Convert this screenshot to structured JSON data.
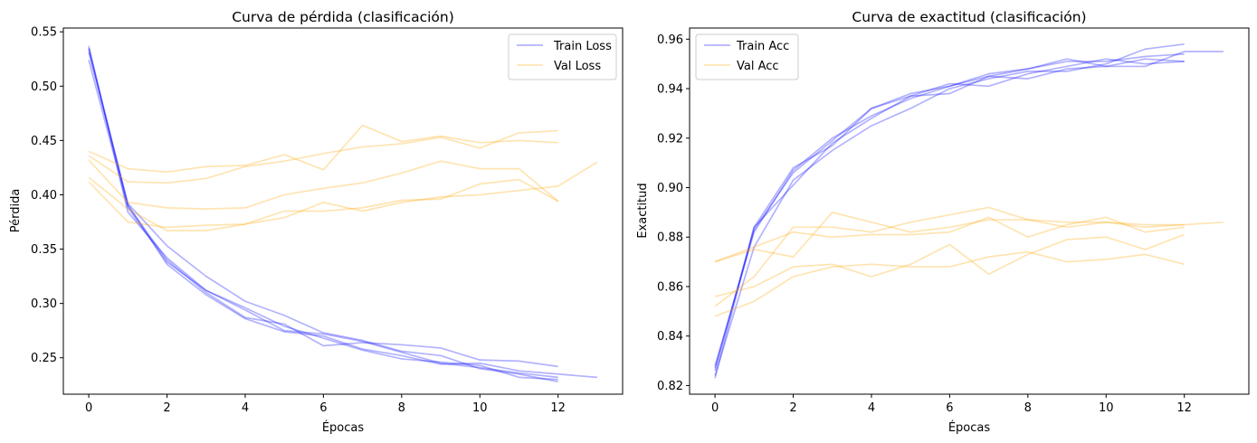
{
  "colors": {
    "train": "#0000ff",
    "val": "#ffa500",
    "line_alpha": 0.3
  },
  "chart_data": [
    {
      "type": "line",
      "title": "Curva de pérdida (clasificación)",
      "xlabel": "Épocas",
      "ylabel": "Pérdida",
      "xlim": [
        -0.65,
        13.65
      ],
      "ylim": [
        0.2165,
        0.5535
      ],
      "xticks": [
        0,
        2,
        4,
        6,
        8,
        10,
        12
      ],
      "yticks": [
        0.25,
        0.3,
        0.35,
        0.4,
        0.45,
        0.5,
        0.55
      ],
      "ytick_labels": [
        "0.25",
        "0.30",
        "0.35",
        "0.40",
        "0.45",
        "0.50",
        "0.55"
      ],
      "grid": false,
      "legend_position": "top-right",
      "legend": [
        {
          "label": "Train Loss",
          "group": "train"
        },
        {
          "label": "Val Loss",
          "group": "val"
        }
      ],
      "series": [
        {
          "group": "train",
          "x": [
            0,
            1,
            2,
            3,
            4,
            5,
            6,
            7,
            8,
            9,
            10,
            11,
            12
          ],
          "y": [
            0.537,
            0.384,
            0.342,
            0.312,
            0.294,
            0.275,
            0.272,
            0.265,
            0.255,
            0.245,
            0.241,
            0.236,
            0.232
          ]
        },
        {
          "group": "train",
          "x": [
            0,
            1,
            2,
            3,
            4,
            5,
            6,
            7,
            8,
            9,
            10,
            11,
            12
          ],
          "y": [
            0.535,
            0.39,
            0.34,
            0.31,
            0.287,
            0.281,
            0.261,
            0.264,
            0.262,
            0.259,
            0.248,
            0.247,
            0.242
          ]
        },
        {
          "group": "train",
          "x": [
            0,
            1,
            2,
            3,
            4,
            5,
            6,
            7,
            8,
            9,
            10,
            11,
            12
          ],
          "y": [
            0.531,
            0.392,
            0.353,
            0.325,
            0.302,
            0.289,
            0.273,
            0.266,
            0.256,
            0.252,
            0.24,
            0.235,
            0.228
          ]
        },
        {
          "group": "train",
          "x": [
            0,
            1,
            2,
            3,
            4,
            5,
            6,
            7,
            8,
            9,
            10,
            11,
            12,
            13
          ],
          "y": [
            0.534,
            0.391,
            0.336,
            0.308,
            0.286,
            0.274,
            0.27,
            0.258,
            0.252,
            0.244,
            0.245,
            0.238,
            0.235,
            0.232
          ]
        },
        {
          "group": "train",
          "x": [
            0,
            1,
            2,
            3,
            4,
            5,
            6,
            7,
            8,
            9,
            10,
            11,
            12
          ],
          "y": [
            0.524,
            0.388,
            0.338,
            0.312,
            0.296,
            0.279,
            0.268,
            0.257,
            0.249,
            0.246,
            0.243,
            0.232,
            0.23
          ]
        },
        {
          "group": "val",
          "x": [
            0,
            1,
            2,
            3,
            4,
            5,
            6,
            7,
            8,
            9,
            10,
            11,
            12
          ],
          "y": [
            0.44,
            0.424,
            0.421,
            0.426,
            0.427,
            0.437,
            0.423,
            0.464,
            0.449,
            0.454,
            0.448,
            0.45,
            0.448
          ]
        },
        {
          "group": "val",
          "x": [
            0,
            1,
            2,
            3,
            4,
            5,
            6,
            7,
            8,
            9,
            10,
            11,
            12
          ],
          "y": [
            0.436,
            0.412,
            0.411,
            0.415,
            0.426,
            0.431,
            0.438,
            0.444,
            0.447,
            0.453,
            0.443,
            0.457,
            0.459
          ]
        },
        {
          "group": "val",
          "x": [
            0,
            1,
            2,
            3,
            4,
            5,
            6,
            7,
            8,
            9,
            10,
            11,
            12
          ],
          "y": [
            0.432,
            0.393,
            0.388,
            0.387,
            0.388,
            0.4,
            0.406,
            0.411,
            0.42,
            0.431,
            0.424,
            0.424,
            0.394
          ]
        },
        {
          "group": "val",
          "x": [
            0,
            1,
            2,
            3,
            4,
            5,
            6,
            7,
            8,
            9,
            10,
            11,
            12
          ],
          "y": [
            0.416,
            0.387,
            0.367,
            0.367,
            0.373,
            0.385,
            0.385,
            0.388,
            0.395,
            0.396,
            0.41,
            0.414,
            0.394
          ]
        },
        {
          "group": "val",
          "x": [
            0,
            1,
            2,
            3,
            4,
            5,
            6,
            7,
            8,
            9,
            10,
            11,
            12,
            13
          ],
          "y": [
            0.412,
            0.375,
            0.37,
            0.372,
            0.373,
            0.379,
            0.393,
            0.385,
            0.393,
            0.398,
            0.4,
            0.404,
            0.408,
            0.43
          ]
        }
      ]
    },
    {
      "type": "line",
      "title": "Curva de exactitud (clasificación)",
      "xlabel": "Épocas",
      "ylabel": "Exactitud",
      "xlim": [
        -0.65,
        13.65
      ],
      "ylim": [
        0.8165,
        0.9645
      ],
      "xticks": [
        0,
        2,
        4,
        6,
        8,
        10,
        12
      ],
      "yticks": [
        0.82,
        0.84,
        0.86,
        0.88,
        0.9,
        0.92,
        0.94,
        0.96
      ],
      "ytick_labels": [
        "0.82",
        "0.84",
        "0.86",
        "0.88",
        "0.90",
        "0.92",
        "0.94",
        "0.96"
      ],
      "grid": false,
      "legend_position": "top-left",
      "legend": [
        {
          "label": "Train Acc",
          "group": "train"
        },
        {
          "label": "Val Acc",
          "group": "val"
        }
      ],
      "series": [
        {
          "group": "train",
          "x": [
            0,
            1,
            2,
            3,
            4,
            5,
            6,
            7,
            8,
            9,
            10,
            11,
            12
          ],
          "y": [
            0.827,
            0.883,
            0.906,
            0.919,
            0.932,
            0.937,
            0.938,
            0.945,
            0.948,
            0.952,
            0.949,
            0.952,
            0.951
          ]
        },
        {
          "group": "train",
          "x": [
            0,
            1,
            2,
            3,
            4,
            5,
            6,
            7,
            8,
            9,
            10,
            11,
            12
          ],
          "y": [
            0.826,
            0.884,
            0.901,
            0.918,
            0.928,
            0.937,
            0.942,
            0.941,
            0.946,
            0.949,
            0.952,
            0.95,
            0.951
          ]
        },
        {
          "group": "train",
          "x": [
            0,
            1,
            2,
            3,
            4,
            5,
            6,
            7,
            8,
            9,
            10,
            11,
            12
          ],
          "y": [
            0.824,
            0.876,
            0.903,
            0.915,
            0.925,
            0.932,
            0.94,
            0.944,
            0.947,
            0.947,
            0.95,
            0.956,
            0.958
          ]
        },
        {
          "group": "train",
          "x": [
            0,
            1,
            2,
            3,
            4,
            5,
            6,
            7,
            8,
            9,
            10,
            11,
            12,
            13
          ],
          "y": [
            0.828,
            0.882,
            0.907,
            0.92,
            0.929,
            0.936,
            0.941,
            0.945,
            0.944,
            0.948,
            0.949,
            0.949,
            0.955,
            0.955
          ]
        },
        {
          "group": "train",
          "x": [
            0,
            1,
            2,
            3,
            4,
            5,
            6,
            7,
            8,
            9,
            10,
            11,
            12
          ],
          "y": [
            0.823,
            0.884,
            0.908,
            0.917,
            0.932,
            0.938,
            0.941,
            0.946,
            0.948,
            0.951,
            0.951,
            0.953,
            0.954
          ]
        },
        {
          "group": "val",
          "x": [
            0,
            1,
            2,
            3,
            4,
            5,
            6,
            7,
            8,
            9,
            10,
            11,
            12
          ],
          "y": [
            0.87,
            0.875,
            0.872,
            0.89,
            0.886,
            0.882,
            0.884,
            0.887,
            0.887,
            0.886,
            0.886,
            0.884,
            0.885
          ]
        },
        {
          "group": "val",
          "x": [
            0,
            1,
            2,
            3,
            4,
            5,
            6,
            7,
            8,
            9,
            10,
            11,
            12
          ],
          "y": [
            0.87,
            0.876,
            0.882,
            0.88,
            0.881,
            0.881,
            0.882,
            0.888,
            0.88,
            0.885,
            0.888,
            0.882,
            0.884
          ]
        },
        {
          "group": "val",
          "x": [
            0,
            1,
            2,
            3,
            4,
            5,
            6,
            7,
            8,
            9,
            10,
            11,
            12,
            13
          ],
          "y": [
            0.852,
            0.864,
            0.884,
            0.884,
            0.882,
            0.886,
            0.889,
            0.892,
            0.887,
            0.884,
            0.886,
            0.885,
            0.885,
            0.886
          ]
        },
        {
          "group": "val",
          "x": [
            0,
            1,
            2,
            3,
            4,
            5,
            6,
            7,
            8,
            9,
            10,
            11,
            12
          ],
          "y": [
            0.856,
            0.86,
            0.868,
            0.869,
            0.864,
            0.869,
            0.877,
            0.865,
            0.873,
            0.879,
            0.88,
            0.875,
            0.881
          ]
        },
        {
          "group": "val",
          "x": [
            0,
            1,
            2,
            3,
            4,
            5,
            6,
            7,
            8,
            9,
            10,
            11,
            12
          ],
          "y": [
            0.848,
            0.854,
            0.864,
            0.868,
            0.869,
            0.868,
            0.868,
            0.872,
            0.874,
            0.87,
            0.871,
            0.873,
            0.869
          ]
        }
      ]
    }
  ]
}
